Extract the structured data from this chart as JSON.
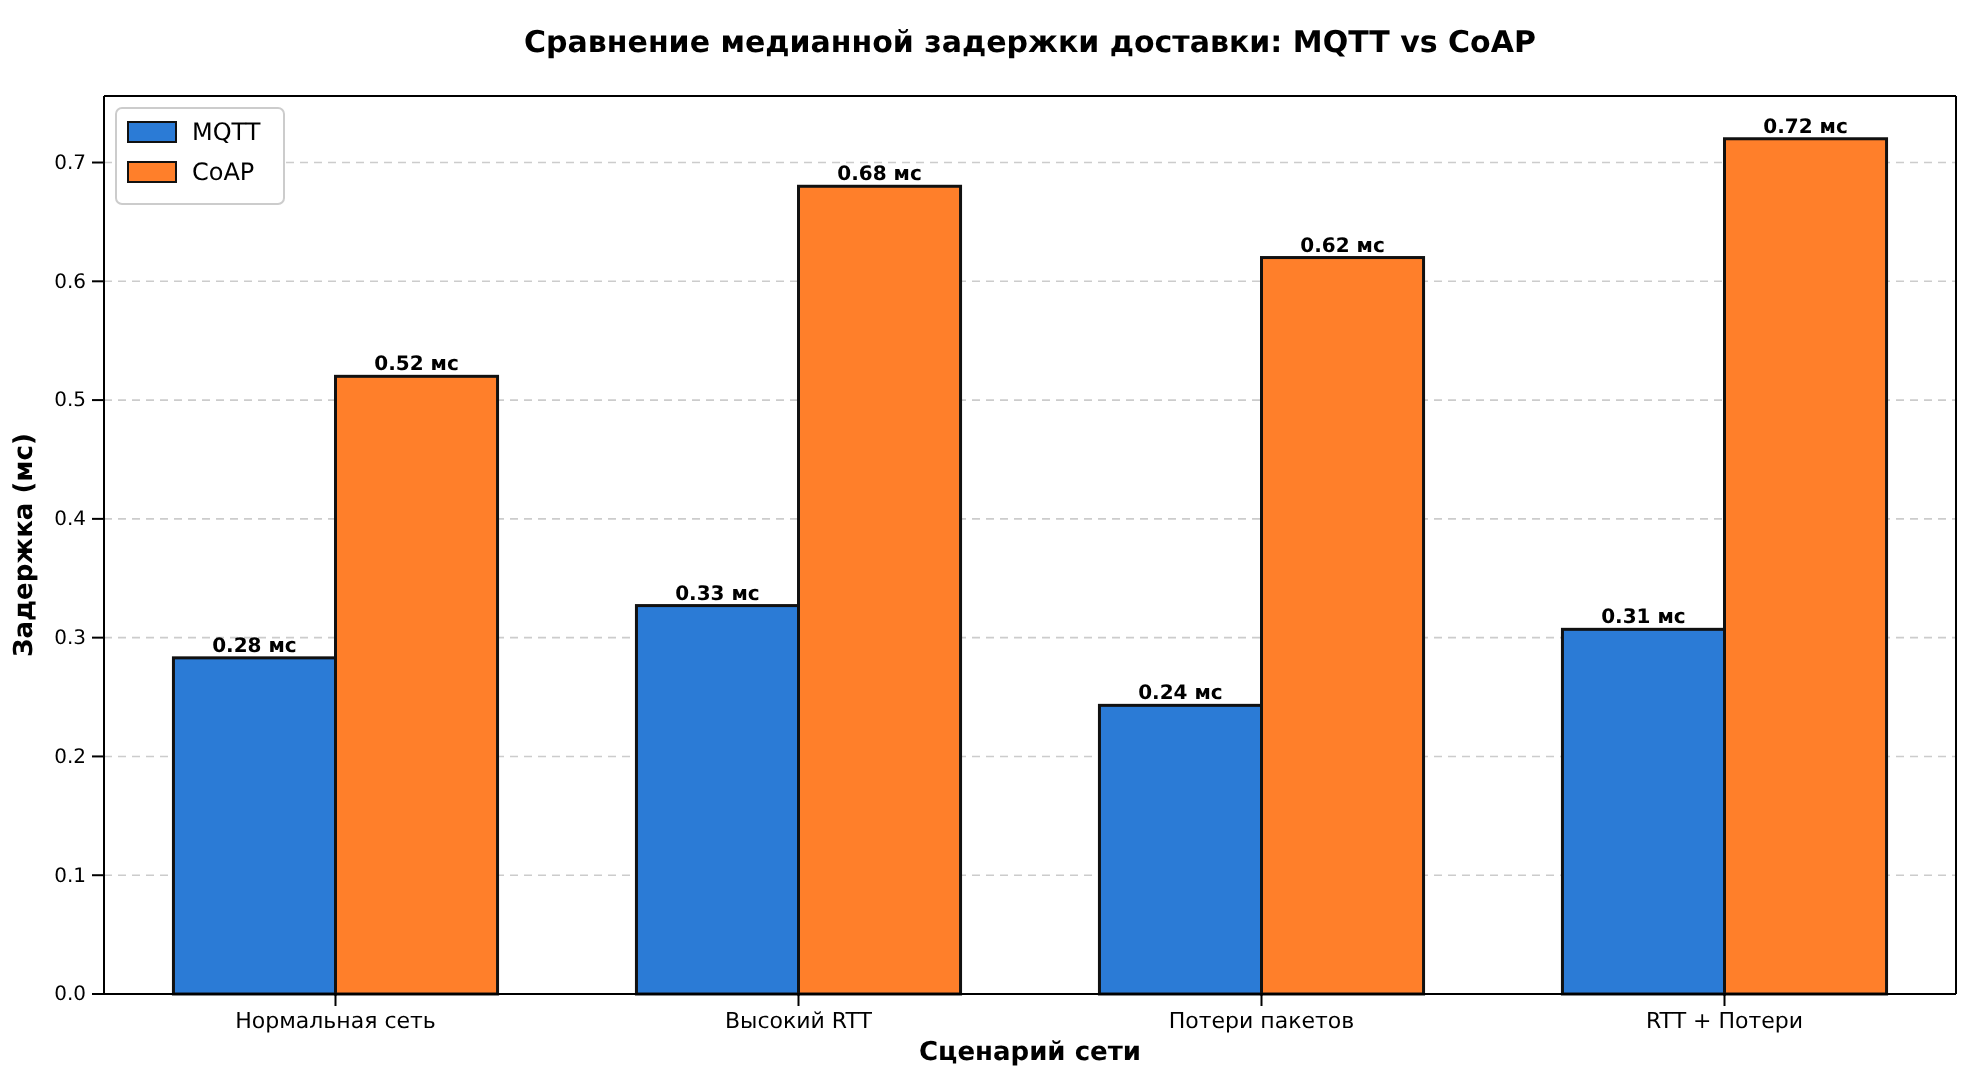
{
  "chart_data": {
    "type": "bar",
    "title": "Сравнение медианной задержки доставки: MQTT vs CoAP",
    "xlabel": "Сценарий сети",
    "ylabel": "Задержка (мс)",
    "categories": [
      "Нормальная сеть",
      "Высокий RTT",
      "Потери пакетов",
      "RTT + Потери"
    ],
    "series": [
      {
        "name": "MQTT",
        "color": "#2b7bd6",
        "values": [
          0.283,
          0.327,
          0.243,
          0.307
        ],
        "value_labels": [
          "0.28 мс",
          "0.33 мс",
          "0.24 мс",
          "0.31 мс"
        ]
      },
      {
        "name": "CoAP",
        "color": "#ff7f2a",
        "values": [
          0.52,
          0.68,
          0.62,
          0.72
        ],
        "value_labels": [
          "0.52 мс",
          "0.68 мс",
          "0.62 мс",
          "0.72 мс"
        ]
      }
    ],
    "ylim": [
      0,
      0.756
    ],
    "yticks": [
      {
        "value": 0,
        "label": "0.0"
      },
      0.1,
      0.2,
      0.3,
      0.4,
      0.5,
      0.6,
      0.7
    ],
    "grid": "y",
    "legend": "top left"
  }
}
